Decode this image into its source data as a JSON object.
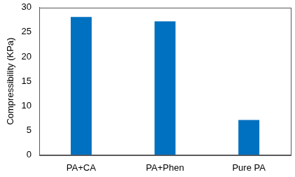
{
  "chart_data": {
    "type": "bar",
    "y_label": "Compressibility (KPa)",
    "categories": [
      "PA+CA",
      "PA+Phen",
      "Pure PA"
    ],
    "values": [
      28.1,
      27.2,
      7.1
    ],
    "color": "#0070c0",
    "ylim": [
      0,
      30
    ],
    "yticks": [
      0,
      5,
      10,
      15,
      20,
      25,
      30
    ],
    "grid": false
  }
}
